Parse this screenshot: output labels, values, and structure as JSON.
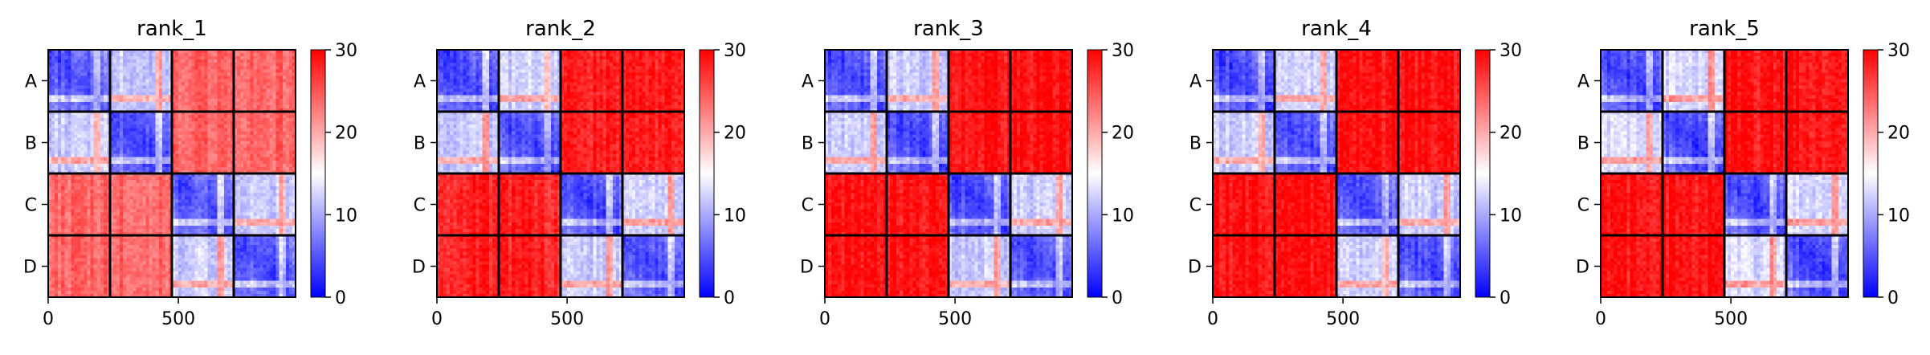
{
  "colorbar": {
    "min": 0,
    "max": 30,
    "ticks": [
      "0",
      "10",
      "20",
      "30"
    ],
    "colors": [
      "#0000ff",
      "#ffffff",
      "#ff0000"
    ]
  },
  "chart_data": [
    {
      "type": "heatmap",
      "title": "rank_1",
      "row_labels": [
        "A",
        "B",
        "C",
        "D"
      ],
      "x_ticks": [
        "0",
        "500"
      ],
      "x_range": [
        0,
        950
      ],
      "chain_length": 232,
      "block_values": [
        [
          7,
          12,
          24,
          24
        ],
        [
          12,
          7,
          24,
          24
        ],
        [
          24,
          24,
          7,
          12
        ],
        [
          24,
          24,
          12,
          7
        ]
      ]
    },
    {
      "type": "heatmap",
      "title": "rank_2",
      "row_labels": [
        "A",
        "B",
        "C",
        "D"
      ],
      "x_ticks": [
        "0",
        "500"
      ],
      "x_range": [
        0,
        950
      ],
      "chain_length": 232,
      "block_values": [
        [
          6,
          12,
          28,
          28
        ],
        [
          12,
          6,
          28,
          28
        ],
        [
          28,
          28,
          6,
          12
        ],
        [
          28,
          28,
          12,
          6
        ]
      ]
    },
    {
      "type": "heatmap",
      "title": "rank_3",
      "row_labels": [
        "A",
        "B",
        "C",
        "D"
      ],
      "x_ticks": [
        "0",
        "500"
      ],
      "x_range": [
        0,
        950
      ],
      "chain_length": 232,
      "block_values": [
        [
          6,
          12,
          29,
          29
        ],
        [
          12,
          6,
          29,
          29
        ],
        [
          29,
          29,
          6,
          12
        ],
        [
          29,
          29,
          12,
          6
        ]
      ]
    },
    {
      "type": "heatmap",
      "title": "rank_4",
      "row_labels": [
        "A",
        "B",
        "C",
        "D"
      ],
      "x_ticks": [
        "0",
        "500"
      ],
      "x_range": [
        0,
        950
      ],
      "chain_length": 232,
      "block_values": [
        [
          6,
          12,
          29,
          29
        ],
        [
          12,
          6,
          29,
          29
        ],
        [
          29,
          29,
          6,
          12
        ],
        [
          29,
          29,
          12,
          6
        ]
      ]
    },
    {
      "type": "heatmap",
      "title": "rank_5",
      "row_labels": [
        "A",
        "B",
        "C",
        "D"
      ],
      "x_ticks": [
        "0",
        "500"
      ],
      "x_range": [
        0,
        950
      ],
      "chain_length": 232,
      "block_values": [
        [
          6,
          13,
          29,
          29
        ],
        [
          13,
          6,
          29,
          29
        ],
        [
          29,
          29,
          6,
          13
        ],
        [
          29,
          29,
          13,
          6
        ]
      ]
    }
  ]
}
